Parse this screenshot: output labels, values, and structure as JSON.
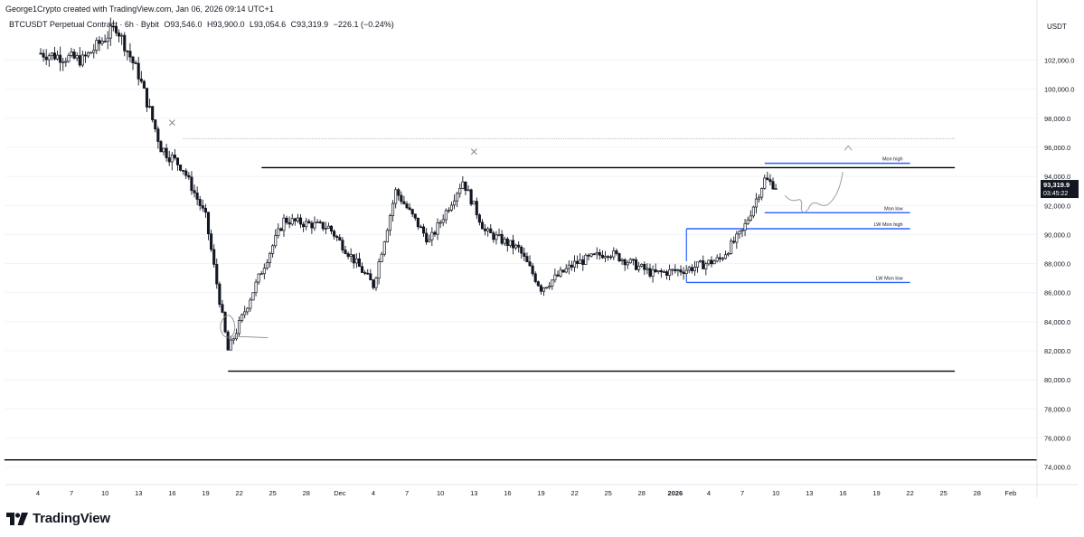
{
  "header": {
    "author_line": "George1Crypto created with TradingView.com, Jan 06, 2026 09:14 UTC+1"
  },
  "symbol": {
    "name": "BTCUSDT Perpetual Contract · 6h · Bybit",
    "open": "O93,546.0",
    "high": "H93,900.0",
    "low": "L93,054.6",
    "close": "C93,319.9",
    "change": "−226.1 (−0.24%)"
  },
  "price_scale": {
    "currency": "USDT",
    "current_price": "93,319.9",
    "countdown": "03:45:22"
  },
  "colors": {
    "up": "#131722",
    "down": "#131722",
    "level_blue": "#2962ff",
    "grid": "#f0f3fa",
    "text": "#131722"
  },
  "brand": "TradingView",
  "chart_data": {
    "type": "candlestick",
    "title": "",
    "xlabel": "",
    "ylabel": "",
    "ylim": [
      72800,
      105200
    ],
    "y_ticks": [
      "74,000.0",
      "76,000.0",
      "78,000.0",
      "80,000.0",
      "82,000.0",
      "84,000.0",
      "86,000.0",
      "88,000.0",
      "90,000.0",
      "92,000.0",
      "94,000.0",
      "96,000.0",
      "98,000.0",
      "100,000.0",
      "102,000.0"
    ],
    "x_ticks": [
      "4",
      "7",
      "10",
      "13",
      "16",
      "19",
      "22",
      "25",
      "28",
      "Dec",
      "4",
      "7",
      "10",
      "13",
      "16",
      "19",
      "22",
      "25",
      "28",
      "2026",
      "4",
      "7",
      "10",
      "13",
      "16",
      "19",
      "22",
      "25",
      "28",
      "Feb"
    ],
    "key_points": [
      {
        "date": "Nov 4",
        "close": 102500
      },
      {
        "date": "Nov 8",
        "close": 102000
      },
      {
        "date": "Nov 11",
        "close": 104300
      },
      {
        "date": "Nov 13",
        "close": 101000
      },
      {
        "date": "Nov 15",
        "close": 96000
      },
      {
        "date": "Nov 17",
        "close": 94500
      },
      {
        "date": "Nov 19",
        "close": 91200
      },
      {
        "date": "Nov 21",
        "close": 82000
      },
      {
        "date": "Nov 24",
        "close": 87500
      },
      {
        "date": "Nov 26",
        "close": 91000
      },
      {
        "date": "Nov 30",
        "close": 90500
      },
      {
        "date": "Dec 1",
        "close": 86500
      },
      {
        "date": "Dec 3",
        "close": 93000
      },
      {
        "date": "Dec 6",
        "close": 89500
      },
      {
        "date": "Dec 9",
        "close": 93700
      },
      {
        "date": "Dec 11",
        "close": 90200
      },
      {
        "date": "Dec 14",
        "close": 89000
      },
      {
        "date": "Dec 16",
        "close": 86300
      },
      {
        "date": "Dec 19",
        "close": 88000
      },
      {
        "date": "Dec 22",
        "close": 88800
      },
      {
        "date": "Dec 26",
        "close": 87300
      },
      {
        "date": "Dec 29",
        "close": 87600
      },
      {
        "date": "Jan 1",
        "close": 88300
      },
      {
        "date": "Jan 3",
        "close": 90200
      },
      {
        "date": "Jan 5",
        "close": 93800
      },
      {
        "date": "Jan 6",
        "close": 93320
      }
    ],
    "horizontal_levels": [
      {
        "label": "",
        "price": 94600,
        "from": "Nov 24",
        "to": "Jan 22",
        "color": "#000000"
      },
      {
        "label": "",
        "price": 80600,
        "from": "Nov 21",
        "to": "Jan 22",
        "color": "#000000"
      },
      {
        "label": "",
        "price": 74500,
        "from": "Nov 1",
        "to": "Feb",
        "color": "#000000"
      },
      {
        "label": "",
        "price": 96600,
        "from": "Nov 17",
        "to": "Jan 22",
        "color": "#9e9e9e",
        "style": "dotted"
      },
      {
        "label": "Mon high",
        "price": 94900,
        "from": "Jan 5",
        "to": "Jan 18",
        "color": "#2962ff"
      },
      {
        "label": "Mon low",
        "price": 91500,
        "from": "Jan 5",
        "to": "Jan 18",
        "color": "#2962ff"
      },
      {
        "label": "LW Mon high",
        "price": 90400,
        "from": "Dec 29",
        "to": "Jan 18",
        "color": "#2962ff"
      },
      {
        "label": "LW Mon low",
        "price": 86700,
        "from": "Dec 29",
        "to": "Jan 18",
        "color": "#2962ff"
      }
    ],
    "annotations": [
      "x marker near Nov 16 at 97700",
      "x marker near Dec 10 at 95700",
      "circle on Nov 21 low",
      "projected path from Jan 6 dipping to ~90,500 then rising to ~96,000"
    ]
  }
}
